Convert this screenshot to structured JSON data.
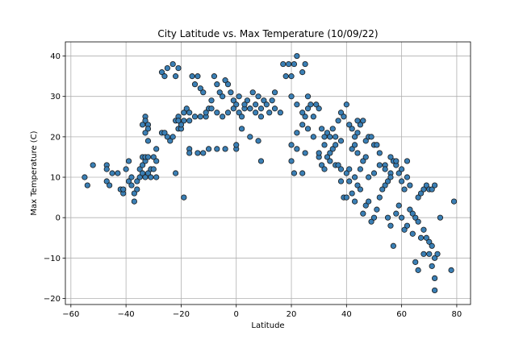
{
  "chart_data": {
    "type": "scatter",
    "title": "City Latitude vs. Max Temperature (10/09/22)",
    "xlabel": "Latitude",
    "ylabel": "Max Temperature (C)",
    "xlim": [
      -62,
      85
    ],
    "ylim": [
      -21.5,
      43.5
    ],
    "xticks": [
      -60,
      -40,
      -20,
      0,
      20,
      40,
      60,
      80
    ],
    "yticks": [
      -20,
      -10,
      0,
      10,
      20,
      30,
      40
    ],
    "grid": true,
    "marker_color": "#3a7fb5",
    "marker_edge": "#1a1a1a",
    "series": [
      {
        "points": [
          [
            -55,
            10
          ],
          [
            -54,
            8
          ],
          [
            -52,
            13
          ],
          [
            -47,
            13
          ],
          [
            -47,
            12
          ],
          [
            -47,
            9
          ],
          [
            -46,
            8
          ],
          [
            -45,
            11
          ],
          [
            -43,
            11
          ],
          [
            -42,
            7
          ],
          [
            -41,
            6
          ],
          [
            -41,
            7
          ],
          [
            -40,
            12
          ],
          [
            -39,
            14
          ],
          [
            -39,
            9
          ],
          [
            -38,
            10
          ],
          [
            -38,
            8
          ],
          [
            -37,
            6
          ],
          [
            -37,
            4
          ],
          [
            -36,
            7
          ],
          [
            -36,
            9
          ],
          [
            -35,
            10
          ],
          [
            -35,
            12
          ],
          [
            -34,
            11
          ],
          [
            -34,
            13
          ],
          [
            -33,
            14
          ],
          [
            -33,
            10
          ],
          [
            -32,
            11
          ],
          [
            -31,
            12
          ],
          [
            -31,
            10
          ],
          [
            -30,
            15
          ],
          [
            -29,
            14
          ],
          [
            -29,
            10
          ],
          [
            -34,
            15
          ],
          [
            -33,
            15
          ],
          [
            -32,
            15
          ],
          [
            -30,
            12
          ],
          [
            -33,
            25
          ],
          [
            -33,
            24
          ],
          [
            -34,
            23
          ],
          [
            -32,
            23
          ],
          [
            -32,
            22
          ],
          [
            -33,
            21
          ],
          [
            -32,
            19
          ],
          [
            -29,
            17
          ],
          [
            -27,
            36
          ],
          [
            -26,
            35
          ],
          [
            -25,
            37
          ],
          [
            -23,
            38
          ],
          [
            -22,
            35
          ],
          [
            -21,
            37
          ],
          [
            -27,
            21
          ],
          [
            -26,
            21
          ],
          [
            -25,
            20
          ],
          [
            -24,
            19
          ],
          [
            -23,
            20
          ],
          [
            -22,
            24
          ],
          [
            -21,
            25
          ],
          [
            -21,
            22
          ],
          [
            -20,
            22
          ],
          [
            -19,
            26
          ],
          [
            -18,
            27
          ],
          [
            -17,
            24
          ],
          [
            -17,
            17
          ],
          [
            -16,
            35
          ],
          [
            -15,
            33
          ],
          [
            -14,
            35
          ],
          [
            -13,
            32
          ],
          [
            -12,
            31
          ],
          [
            -11,
            25
          ],
          [
            -10,
            27
          ],
          [
            -9,
            29
          ],
          [
            -8,
            35
          ],
          [
            -7,
            33
          ],
          [
            -6,
            31
          ],
          [
            -5,
            30
          ],
          [
            -4,
            34
          ],
          [
            -3,
            33
          ],
          [
            -2,
            31
          ],
          [
            -1,
            29
          ],
          [
            0,
            28
          ],
          [
            1,
            26
          ],
          [
            2,
            25
          ],
          [
            3,
            27
          ],
          [
            4,
            29
          ],
          [
            5,
            27
          ],
          [
            6,
            31
          ],
          [
            7,
            28
          ],
          [
            8,
            30
          ],
          [
            9,
            27
          ],
          [
            10,
            29
          ],
          [
            -22,
            11
          ],
          [
            -19,
            5
          ],
          [
            -17,
            16
          ],
          [
            -14,
            16
          ],
          [
            -12,
            16
          ],
          [
            -10,
            17
          ],
          [
            -7,
            17
          ],
          [
            -4,
            17
          ],
          [
            0,
            17
          ],
          [
            0,
            18
          ],
          [
            2,
            22
          ],
          [
            5,
            20
          ],
          [
            8,
            19
          ],
          [
            9,
            14
          ],
          [
            12,
            26
          ],
          [
            14,
            27
          ],
          [
            16,
            26
          ],
          [
            17,
            38
          ],
          [
            18,
            35
          ],
          [
            19,
            38
          ],
          [
            20,
            35
          ],
          [
            21,
            38
          ],
          [
            22,
            40
          ],
          [
            24,
            36
          ],
          [
            25,
            38
          ],
          [
            26,
            30
          ],
          [
            20,
            14
          ],
          [
            21,
            11
          ],
          [
            22,
            17
          ],
          [
            24,
            11
          ],
          [
            25,
            16
          ],
          [
            20,
            18
          ],
          [
            22,
            21
          ],
          [
            24,
            23
          ],
          [
            25,
            25
          ],
          [
            26,
            27
          ],
          [
            27,
            28
          ],
          [
            28,
            25
          ],
          [
            29,
            28
          ],
          [
            30,
            27
          ],
          [
            31,
            22
          ],
          [
            32,
            20
          ],
          [
            33,
            21
          ],
          [
            34,
            20
          ],
          [
            35,
            22
          ],
          [
            36,
            20
          ],
          [
            37,
            24
          ],
          [
            38,
            26
          ],
          [
            39,
            25
          ],
          [
            40,
            28
          ],
          [
            30,
            15
          ],
          [
            31,
            13
          ],
          [
            32,
            12
          ],
          [
            33,
            15
          ],
          [
            34,
            14
          ],
          [
            35,
            17
          ],
          [
            36,
            13
          ],
          [
            37,
            13
          ],
          [
            38,
            12
          ],
          [
            38,
            9
          ],
          [
            39,
            5
          ],
          [
            40,
            11
          ],
          [
            41,
            12
          ],
          [
            42,
            17
          ],
          [
            43,
            18
          ],
          [
            44,
            21
          ],
          [
            45,
            23
          ],
          [
            46,
            24
          ],
          [
            47,
            19
          ],
          [
            48,
            20
          ],
          [
            49,
            20
          ],
          [
            50,
            18
          ],
          [
            51,
            18
          ],
          [
            52,
            16
          ],
          [
            40,
            5
          ],
          [
            41,
            9
          ],
          [
            42,
            6
          ],
          [
            43,
            4
          ],
          [
            44,
            8
          ],
          [
            45,
            7
          ],
          [
            46,
            1
          ],
          [
            47,
            3
          ],
          [
            48,
            4
          ],
          [
            49,
            -1
          ],
          [
            50,
            0
          ],
          [
            51,
            2
          ],
          [
            52,
            5
          ],
          [
            53,
            7
          ],
          [
            54,
            8
          ],
          [
            55,
            9
          ],
          [
            56,
            11
          ],
          [
            57,
            14
          ],
          [
            58,
            13
          ],
          [
            59,
            11
          ],
          [
            60,
            9
          ],
          [
            61,
            7
          ],
          [
            62,
            10
          ],
          [
            63,
            8
          ],
          [
            55,
            0
          ],
          [
            56,
            -2
          ],
          [
            57,
            -7
          ],
          [
            58,
            1
          ],
          [
            59,
            3
          ],
          [
            60,
            0
          ],
          [
            61,
            -3
          ],
          [
            62,
            -2
          ],
          [
            63,
            2
          ],
          [
            64,
            1
          ],
          [
            65,
            0
          ],
          [
            66,
            -1
          ],
          [
            67,
            -5
          ],
          [
            68,
            -3
          ],
          [
            69,
            -5
          ],
          [
            70,
            -6
          ],
          [
            71,
            -7
          ],
          [
            72,
            -10
          ],
          [
            73,
            -9
          ],
          [
            74,
            0
          ],
          [
            64,
            -4
          ],
          [
            65,
            -11
          ],
          [
            66,
            -13
          ],
          [
            68,
            -9
          ],
          [
            70,
            -9
          ],
          [
            71,
            -12
          ],
          [
            72,
            -15
          ],
          [
            72,
            -18
          ],
          [
            78,
            -13
          ],
          [
            79,
            4
          ],
          [
            66,
            5
          ],
          [
            67,
            6
          ],
          [
            68,
            7
          ],
          [
            69,
            8
          ],
          [
            70,
            7
          ],
          [
            71,
            7
          ],
          [
            72,
            8
          ],
          [
            62,
            14
          ],
          [
            60,
            12
          ],
          [
            58,
            14
          ],
          [
            56,
            15
          ],
          [
            54,
            13
          ],
          [
            44,
            16
          ],
          [
            46,
            14
          ],
          [
            48,
            10
          ],
          [
            50,
            11
          ],
          [
            52,
            13
          ],
          [
            54,
            12
          ],
          [
            56,
            10
          ],
          [
            45,
            12
          ],
          [
            47,
            15
          ],
          [
            43,
            10
          ],
          [
            41,
            23
          ],
          [
            42,
            22
          ],
          [
            43,
            20
          ],
          [
            44,
            24
          ],
          [
            38,
            19
          ],
          [
            36,
            18
          ],
          [
            34,
            16
          ],
          [
            32,
            18
          ],
          [
            30,
            16
          ],
          [
            28,
            20
          ],
          [
            26,
            22
          ],
          [
            24,
            26
          ],
          [
            22,
            28
          ],
          [
            20,
            30
          ],
          [
            14,
            31
          ],
          [
            13,
            29
          ],
          [
            11,
            28
          ],
          [
            9,
            25
          ],
          [
            7,
            26
          ],
          [
            5,
            27
          ],
          [
            3,
            28
          ],
          [
            1,
            30
          ],
          [
            -1,
            27
          ],
          [
            -3,
            26
          ],
          [
            -5,
            25
          ],
          [
            -7,
            26
          ],
          [
            -9,
            27
          ],
          [
            -11,
            26
          ],
          [
            -13,
            25
          ],
          [
            -15,
            25
          ],
          [
            -17,
            26
          ],
          [
            -19,
            24
          ],
          [
            -20,
            23
          ],
          [
            -21,
            24
          ]
        ]
      }
    ]
  }
}
